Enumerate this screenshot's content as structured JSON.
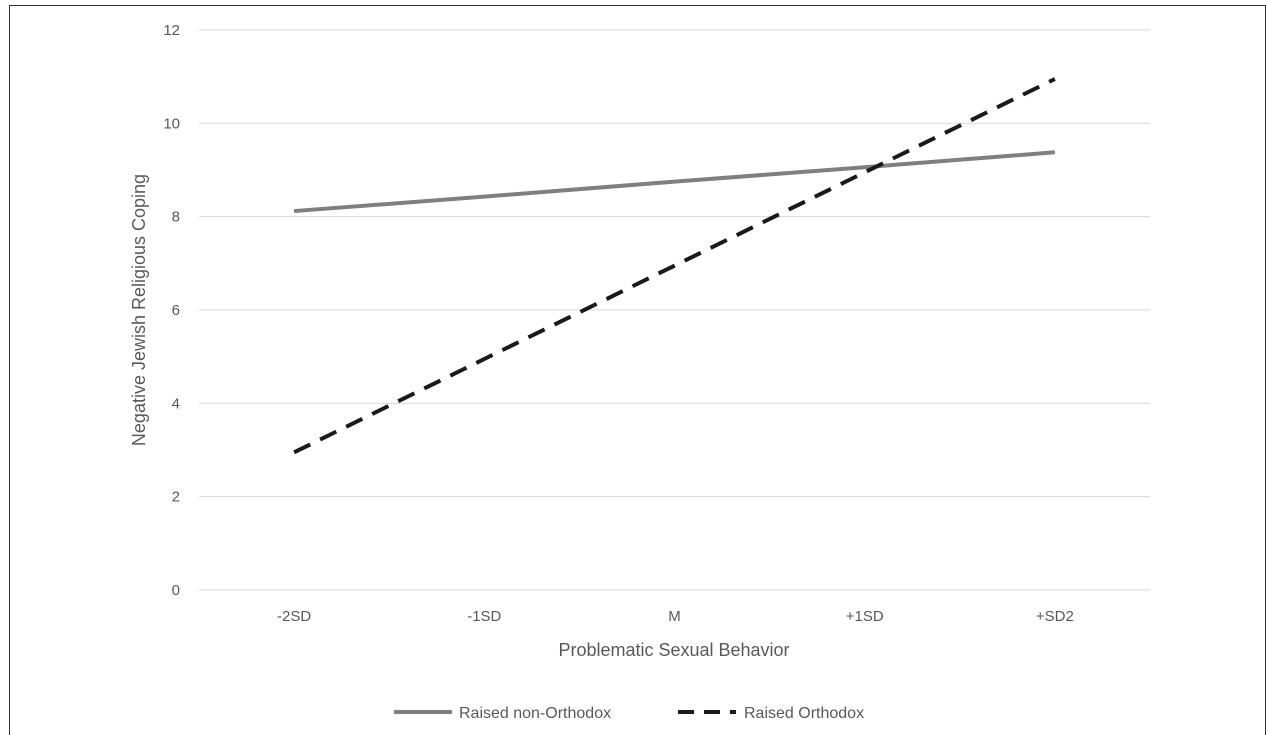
{
  "chart_data": {
    "type": "line",
    "title": "",
    "xlabel": "Problematic Sexual Behavior",
    "ylabel": "Negative Jewish Religious Coping",
    "categories": [
      "-2SD",
      "-1SD",
      "M",
      "+1SD",
      "+SD2"
    ],
    "ylim": [
      0,
      12
    ],
    "yticks": [
      "0",
      "2",
      "4",
      "6",
      "8",
      "10",
      "12"
    ],
    "grid": true,
    "legend_position": "bottom",
    "series": [
      {
        "name": "Raised non-Orthodox",
        "values": [
          8.12,
          8.43,
          8.75,
          9.06,
          9.38
        ],
        "color": "#7f7f7f",
        "style": "solid"
      },
      {
        "name": "Raised Orthodox",
        "values": [
          2.95,
          4.95,
          6.95,
          8.95,
          10.95
        ],
        "color": "#1a1a1a",
        "style": "dashed"
      }
    ]
  }
}
